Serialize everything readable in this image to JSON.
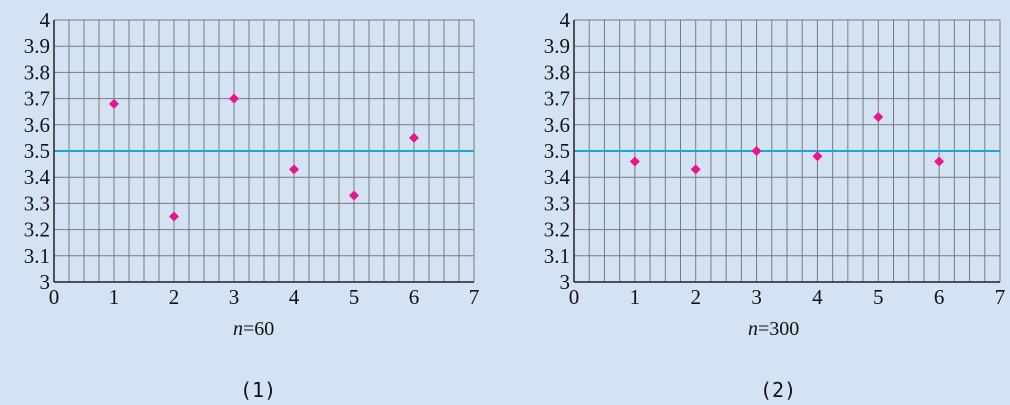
{
  "chart_data": [
    {
      "type": "scatter",
      "xlim": [
        0,
        7
      ],
      "ylim": [
        3,
        4
      ],
      "x_ticks": [
        "0",
        "1",
        "2",
        "3",
        "4",
        "5",
        "6",
        "7"
      ],
      "y_ticks": [
        "3",
        "3.1",
        "3.2",
        "3.3",
        "3.4",
        "3.5",
        "3.6",
        "3.7",
        "3.8",
        "3.9",
        "4"
      ],
      "reference_line": 3.5,
      "grid": true,
      "points": [
        {
          "x": 1,
          "y": 3.68
        },
        {
          "x": 2,
          "y": 3.25
        },
        {
          "x": 3,
          "y": 3.7
        },
        {
          "x": 4,
          "y": 3.43
        },
        {
          "x": 5,
          "y": 3.33
        },
        {
          "x": 6,
          "y": 3.55
        }
      ],
      "caption_var": "n",
      "caption_val": "=60",
      "panel_label": "(1)"
    },
    {
      "type": "scatter",
      "xlim": [
        0,
        7
      ],
      "ylim": [
        3,
        4
      ],
      "x_ticks": [
        "0",
        "1",
        "2",
        "3",
        "4",
        "5",
        "6",
        "7"
      ],
      "y_ticks": [
        "3",
        "3.1",
        "3.2",
        "3.3",
        "3.4",
        "3.5",
        "3.6",
        "3.7",
        "3.8",
        "3.9",
        "4"
      ],
      "reference_line": 3.5,
      "grid": true,
      "points": [
        {
          "x": 1,
          "y": 3.46
        },
        {
          "x": 2,
          "y": 3.43
        },
        {
          "x": 3,
          "y": 3.5
        },
        {
          "x": 4,
          "y": 3.48
        },
        {
          "x": 5,
          "y": 3.63
        },
        {
          "x": 6,
          "y": 3.46
        }
      ],
      "caption_var": "n",
      "caption_val": "=300",
      "panel_label": "(2)"
    }
  ],
  "colors": {
    "background": "#d3e3f4",
    "grid": "#7a7a7a",
    "axis": "#222222",
    "reference_line": "#1aa6d8",
    "marker": "#e8168c"
  }
}
